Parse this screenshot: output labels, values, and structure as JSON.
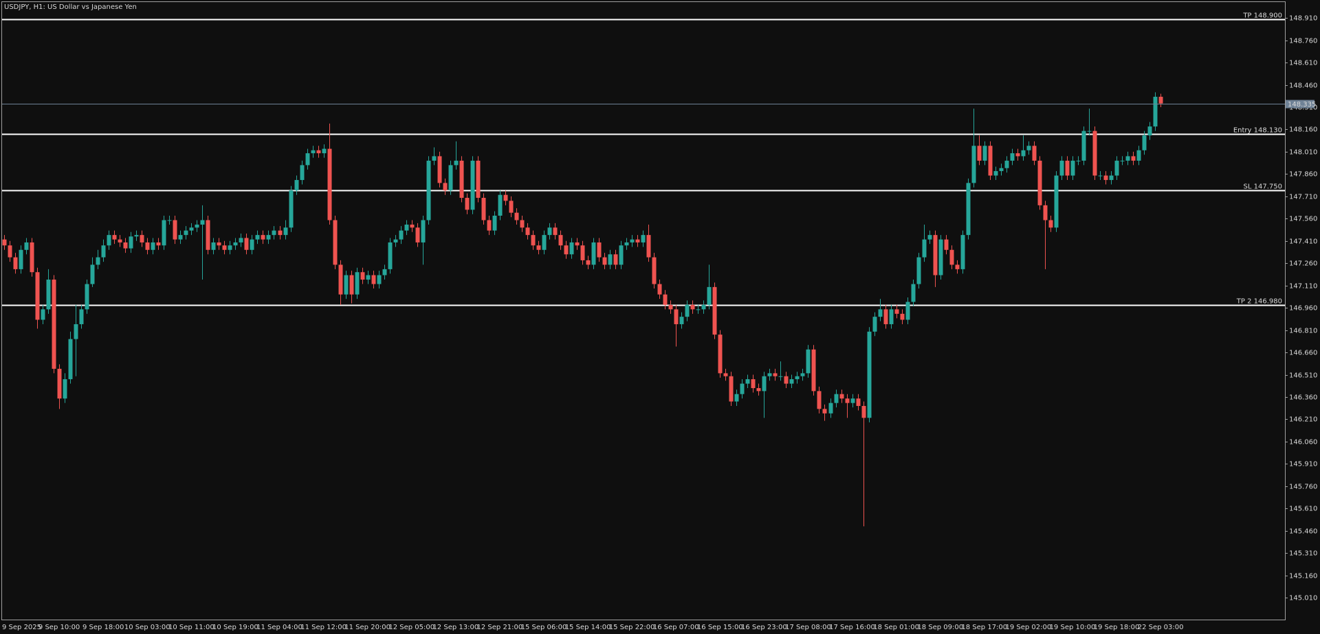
{
  "chart_data": {
    "type": "candlestick",
    "title": "USDJPY, H1:  US Dollar vs Japanese Yen",
    "categories": [
      "9 Sep 2025",
      null,
      null,
      null,
      null,
      null,
      null,
      null,
      null,
      null,
      "9 Sep 10:00",
      null,
      null,
      null,
      null,
      null,
      null,
      null,
      "9 Sep 18:00",
      null,
      null,
      null,
      null,
      null,
      null,
      null,
      "10 Sep 03:00",
      null,
      null,
      null,
      null,
      null,
      null,
      null,
      "10 Sep 11:00",
      null,
      null,
      null,
      null,
      null,
      null,
      null,
      "10 Sep 19:00",
      null,
      null,
      null,
      null,
      null,
      null,
      null,
      "11 Sep 04:00",
      null,
      null,
      null,
      null,
      null,
      null,
      null,
      "11 Sep 12:00",
      null,
      null,
      null,
      null,
      null,
      null,
      null,
      "11 Sep 20:00",
      null,
      null,
      null,
      null,
      null,
      null,
      null,
      "12 Sep 05:00",
      null,
      null,
      null,
      null,
      null,
      null,
      null,
      "12 Sep 13:00",
      null,
      null,
      null,
      null,
      null,
      null,
      null,
      "12 Sep 21:00",
      null,
      null,
      null,
      null,
      null,
      null,
      null,
      "15 Sep 06:00",
      null,
      null,
      null,
      null,
      null,
      null,
      null,
      "15 Sep 14:00",
      null,
      null,
      null,
      null,
      null,
      null,
      null,
      "15 Sep 22:00",
      null,
      null,
      null,
      null,
      null,
      null,
      null,
      "16 Sep 07:00",
      null,
      null,
      null,
      null,
      null,
      null,
      null,
      "16 Sep 15:00",
      null,
      null,
      null,
      null,
      null,
      null,
      null,
      "16 Sep 23:00",
      null,
      null,
      null,
      null,
      null,
      null,
      null,
      "17 Sep 08:00",
      null,
      null,
      null,
      null,
      null,
      null,
      null,
      "17 Sep 16:00",
      null,
      null,
      null,
      null,
      null,
      null,
      null,
      "18 Sep 01:00",
      null,
      null,
      null,
      null,
      null,
      null,
      null,
      "18 Sep 09:00",
      null,
      null,
      null,
      null,
      null,
      null,
      null,
      "18 Sep 17:00",
      null,
      null,
      null,
      null,
      null,
      null,
      null,
      "19 Sep 02:00",
      null,
      null,
      null,
      null,
      null,
      null,
      null,
      "19 Sep 10:00",
      null,
      null,
      null,
      null,
      null,
      null,
      null,
      "19 Sep 18:00",
      null,
      null,
      null,
      null,
      null,
      null,
      null,
      "22 Sep 03:00"
    ],
    "open": [
      147.42,
      147.38,
      147.3,
      147.22,
      147.35,
      147.4,
      147.2,
      146.88,
      146.95,
      147.15,
      146.55,
      146.35,
      146.48,
      146.75,
      146.85,
      146.95,
      147.12,
      147.25,
      147.3,
      147.38,
      147.45,
      147.42,
      147.4,
      147.36,
      147.44,
      147.45,
      147.4,
      147.35,
      147.4,
      147.38,
      147.55,
      147.55,
      147.42,
      147.45,
      147.48,
      147.5,
      147.52,
      147.55,
      147.35,
      147.4,
      147.38,
      147.35,
      147.38,
      147.4,
      147.43,
      147.35,
      147.42,
      147.45,
      147.42,
      147.45,
      147.48,
      147.45,
      147.5,
      147.75,
      147.82,
      147.92,
      148.0,
      148.02,
      148.0,
      148.03,
      147.55,
      147.25,
      147.05,
      147.18,
      147.05,
      147.2,
      147.15,
      147.18,
      147.12,
      147.18,
      147.22,
      147.4,
      147.42,
      147.48,
      147.52,
      147.5,
      147.4,
      147.55,
      147.95,
      147.98,
      147.8,
      147.75,
      147.92,
      147.95,
      147.7,
      147.62,
      147.95,
      147.7,
      147.55,
      147.48,
      147.58,
      147.72,
      147.68,
      147.6,
      147.55,
      147.5,
      147.45,
      147.38,
      147.35,
      147.45,
      147.5,
      147.45,
      147.38,
      147.32,
      147.4,
      147.38,
      147.28,
      147.25,
      147.4,
      147.3,
      147.25,
      147.32,
      147.25,
      147.38,
      147.4,
      147.42,
      147.4,
      147.45,
      147.3,
      147.12,
      147.05,
      146.98,
      146.95,
      146.85,
      146.9,
      146.98,
      146.95,
      146.95,
      146.98,
      147.1,
      146.78,
      146.52,
      146.5,
      146.33,
      146.38,
      146.45,
      146.48,
      146.42,
      146.4,
      146.5,
      146.52,
      146.5,
      146.5,
      146.45,
      146.48,
      146.5,
      146.52,
      146.68,
      146.4,
      146.28,
      146.25,
      146.32,
      146.38,
      146.35,
      146.32,
      146.35,
      146.3,
      146.22,
      146.8,
      146.9,
      146.95,
      146.85,
      146.95,
      146.92,
      146.88,
      147.0,
      147.12,
      147.3,
      147.42,
      147.45,
      147.18,
      147.42,
      147.35,
      147.25,
      147.22,
      147.45,
      147.8,
      148.05,
      147.95,
      148.05,
      147.85,
      147.88,
      147.9,
      147.95,
      148.0,
      147.98,
      148.02,
      148.05,
      147.95,
      147.65,
      147.55,
      147.5,
      147.85,
      147.95,
      147.85,
      147.95,
      147.95,
      148.15,
      148.15,
      147.85,
      147.85,
      147.82,
      147.85,
      147.95,
      147.95,
      147.98,
      147.95,
      148.02,
      148.12,
      148.18,
      148.38
    ],
    "high": [
      147.45,
      147.41,
      147.33,
      147.38,
      147.43,
      147.43,
      147.23,
      146.98,
      147.22,
      147.18,
      146.58,
      146.52,
      146.8,
      146.98,
      146.98,
      147.15,
      147.3,
      147.35,
      147.42,
      147.48,
      147.48,
      147.45,
      147.43,
      147.47,
      147.48,
      147.48,
      147.43,
      147.43,
      147.43,
      147.58,
      147.58,
      147.58,
      147.48,
      147.51,
      147.53,
      147.55,
      147.65,
      147.58,
      147.43,
      147.43,
      147.41,
      147.41,
      147.43,
      147.46,
      147.46,
      147.45,
      147.48,
      147.48,
      147.48,
      147.51,
      147.51,
      147.55,
      147.78,
      147.85,
      147.95,
      148.03,
      148.05,
      148.05,
      148.06,
      148.2,
      147.58,
      147.28,
      147.21,
      147.21,
      147.23,
      147.23,
      147.21,
      147.21,
      147.21,
      147.25,
      147.43,
      147.45,
      147.51,
      147.55,
      147.55,
      147.53,
      147.58,
      147.98,
      148.04,
      148.01,
      147.83,
      147.95,
      148.08,
      147.98,
      147.73,
      147.98,
      147.98,
      147.73,
      147.58,
      147.61,
      147.75,
      147.75,
      147.71,
      147.63,
      147.58,
      147.53,
      147.48,
      147.41,
      147.48,
      147.53,
      147.53,
      147.48,
      147.41,
      147.43,
      147.43,
      147.41,
      147.31,
      147.43,
      147.43,
      147.33,
      147.35,
      147.35,
      147.41,
      147.43,
      147.45,
      147.45,
      147.48,
      147.52,
      147.33,
      147.15,
      147.08,
      147.01,
      146.98,
      146.93,
      147.01,
      147.01,
      146.98,
      147.01,
      147.25,
      147.13,
      146.81,
      146.55,
      146.53,
      146.41,
      146.48,
      146.51,
      146.51,
      146.45,
      146.53,
      146.55,
      146.55,
      146.6,
      146.53,
      146.51,
      146.53,
      146.55,
      146.71,
      146.71,
      146.43,
      146.31,
      146.35,
      146.41,
      146.41,
      146.38,
      146.38,
      146.38,
      146.33,
      146.83,
      146.93,
      147.02,
      146.98,
      146.98,
      146.98,
      146.95,
      147.03,
      147.15,
      147.33,
      147.52,
      147.48,
      147.48,
      147.45,
      147.45,
      147.38,
      147.28,
      147.48,
      147.83,
      148.3,
      148.12,
      148.08,
      148.08,
      147.91,
      147.93,
      147.98,
      148.03,
      148.03,
      148.12,
      148.08,
      148.08,
      147.98,
      147.68,
      147.58,
      147.88,
      147.98,
      147.98,
      147.98,
      147.98,
      148.18,
      148.3,
      148.18,
      147.88,
      147.88,
      147.88,
      147.98,
      147.98,
      148.01,
      148.01,
      148.05,
      148.15,
      148.21,
      148.41,
      148.4
    ],
    "low": [
      147.35,
      147.27,
      147.19,
      147.19,
      147.32,
      147.17,
      146.82,
      146.85,
      146.92,
      146.52,
      146.28,
      146.32,
      146.45,
      146.5,
      146.82,
      146.92,
      147.1,
      147.22,
      147.27,
      147.35,
      147.39,
      147.37,
      147.33,
      147.33,
      147.41,
      147.37,
      147.32,
      147.32,
      147.35,
      147.35,
      147.52,
      147.39,
      147.39,
      147.42,
      147.45,
      147.47,
      147.15,
      147.32,
      147.32,
      147.35,
      147.32,
      147.32,
      147.35,
      147.37,
      147.32,
      147.32,
      147.39,
      147.39,
      147.39,
      147.42,
      147.42,
      147.42,
      147.47,
      147.72,
      147.79,
      147.89,
      147.97,
      147.97,
      147.97,
      147.52,
      147.22,
      146.98,
      147.02,
      146.99,
      147.02,
      147.12,
      147.12,
      147.09,
      147.09,
      147.15,
      147.19,
      147.37,
      147.39,
      147.45,
      147.47,
      147.37,
      147.25,
      147.52,
      147.92,
      147.77,
      147.72,
      147.72,
      147.89,
      147.67,
      147.59,
      147.59,
      147.67,
      147.52,
      147.45,
      147.45,
      147.55,
      147.65,
      147.57,
      147.52,
      147.47,
      147.42,
      147.35,
      147.32,
      147.32,
      147.42,
      147.42,
      147.35,
      147.29,
      147.29,
      147.35,
      147.25,
      147.22,
      147.22,
      147.27,
      147.22,
      147.22,
      147.22,
      147.22,
      147.35,
      147.37,
      147.37,
      147.37,
      147.27,
      147.09,
      147.02,
      146.95,
      146.92,
      146.7,
      146.82,
      146.87,
      146.92,
      146.92,
      146.92,
      146.95,
      146.75,
      146.49,
      146.47,
      146.3,
      146.3,
      146.35,
      146.42,
      146.39,
      146.37,
      146.22,
      146.47,
      146.47,
      146.47,
      146.42,
      146.42,
      146.45,
      146.47,
      146.49,
      146.37,
      146.25,
      146.2,
      146.22,
      146.29,
      146.32,
      146.22,
      146.29,
      146.27,
      145.49,
      146.19,
      146.77,
      146.87,
      146.82,
      146.82,
      146.89,
      146.85,
      146.85,
      146.97,
      147.09,
      147.27,
      147.39,
      147.1,
      147.15,
      147.32,
      147.22,
      147.19,
      147.19,
      147.42,
      147.77,
      147.92,
      147.92,
      147.82,
      147.82,
      147.85,
      147.87,
      147.92,
      147.95,
      147.95,
      147.99,
      147.92,
      147.62,
      147.22,
      147.47,
      147.47,
      147.82,
      147.82,
      147.82,
      147.92,
      147.92,
      148.12,
      147.82,
      147.82,
      147.79,
      147.79,
      147.82,
      147.92,
      147.92,
      147.92,
      147.92,
      147.99,
      148.09,
      148.15,
      148.31
    ],
    "close": [
      147.38,
      147.3,
      147.22,
      147.35,
      147.4,
      147.2,
      146.88,
      146.95,
      147.15,
      146.55,
      146.35,
      146.48,
      146.75,
      146.85,
      146.95,
      147.12,
      147.25,
      147.3,
      147.38,
      147.45,
      147.42,
      147.4,
      147.36,
      147.44,
      147.45,
      147.4,
      147.35,
      147.4,
      147.38,
      147.55,
      147.55,
      147.42,
      147.45,
      147.48,
      147.5,
      147.52,
      147.55,
      147.35,
      147.4,
      147.38,
      147.35,
      147.38,
      147.4,
      147.43,
      147.35,
      147.42,
      147.45,
      147.42,
      147.45,
      147.48,
      147.45,
      147.5,
      147.75,
      147.82,
      147.92,
      148.0,
      148.02,
      148.0,
      148.03,
      147.55,
      147.25,
      147.05,
      147.18,
      147.05,
      147.2,
      147.15,
      147.18,
      147.12,
      147.18,
      147.22,
      147.4,
      147.42,
      147.48,
      147.52,
      147.5,
      147.4,
      147.55,
      147.95,
      147.98,
      147.8,
      147.75,
      147.92,
      147.95,
      147.7,
      147.62,
      147.95,
      147.7,
      147.55,
      147.48,
      147.58,
      147.72,
      147.68,
      147.6,
      147.55,
      147.5,
      147.45,
      147.38,
      147.35,
      147.45,
      147.5,
      147.45,
      147.38,
      147.32,
      147.4,
      147.38,
      147.28,
      147.25,
      147.4,
      147.3,
      147.25,
      147.32,
      147.25,
      147.38,
      147.4,
      147.42,
      147.4,
      147.45,
      147.3,
      147.12,
      147.05,
      146.98,
      146.95,
      146.85,
      146.9,
      146.98,
      146.95,
      146.95,
      146.98,
      147.1,
      146.78,
      146.52,
      146.5,
      146.33,
      146.38,
      146.45,
      146.48,
      146.42,
      146.4,
      146.5,
      146.52,
      146.5,
      146.5,
      146.45,
      146.48,
      146.5,
      146.52,
      146.68,
      146.4,
      146.28,
      146.25,
      146.32,
      146.38,
      146.35,
      146.32,
      146.35,
      146.3,
      146.22,
      146.8,
      146.9,
      146.95,
      146.85,
      146.95,
      146.92,
      146.88,
      147.0,
      147.12,
      147.3,
      147.42,
      147.45,
      147.18,
      147.42,
      147.35,
      147.25,
      147.22,
      147.45,
      147.8,
      148.05,
      147.95,
      148.05,
      147.85,
      147.88,
      147.9,
      147.95,
      148.0,
      147.98,
      148.02,
      148.05,
      147.95,
      147.65,
      147.55,
      147.5,
      147.85,
      147.95,
      147.85,
      147.95,
      147.95,
      148.15,
      148.15,
      147.85,
      147.85,
      147.82,
      147.85,
      147.95,
      147.95,
      147.98,
      147.95,
      148.02,
      148.12,
      148.18,
      148.38,
      148.335
    ],
    "up_color": "#26a69a",
    "down_color": "#ef5350",
    "ylim": [
      144.863,
      149.017
    ],
    "yticks": [
      {
        "value": 148.91,
        "label": "148.910"
      },
      {
        "value": 148.76,
        "label": "148.760"
      },
      {
        "value": 148.61,
        "label": "148.610"
      },
      {
        "value": 148.46,
        "label": "148.460"
      },
      {
        "value": 148.31,
        "label": "148.310"
      },
      {
        "value": 148.16,
        "label": "148.160"
      },
      {
        "value": 148.01,
        "label": "148.010"
      },
      {
        "value": 147.86,
        "label": "147.860"
      },
      {
        "value": 147.71,
        "label": "147.710"
      },
      {
        "value": 147.56,
        "label": "147.560"
      },
      {
        "value": 147.41,
        "label": "147.410"
      },
      {
        "value": 147.26,
        "label": "147.260"
      },
      {
        "value": 147.11,
        "label": "147.110"
      },
      {
        "value": 146.96,
        "label": "146.960"
      },
      {
        "value": 146.81,
        "label": "146.810"
      },
      {
        "value": 146.66,
        "label": "146.660"
      },
      {
        "value": 146.51,
        "label": "146.510"
      },
      {
        "value": 146.36,
        "label": "146.360"
      },
      {
        "value": 146.21,
        "label": "146.210"
      },
      {
        "value": 146.06,
        "label": "146.060"
      },
      {
        "value": 145.91,
        "label": "145.910"
      },
      {
        "value": 145.76,
        "label": "145.760"
      },
      {
        "value": 145.61,
        "label": "145.610"
      },
      {
        "value": 145.46,
        "label": "145.460"
      },
      {
        "value": 145.31,
        "label": "145.310"
      },
      {
        "value": 145.16,
        "label": "145.160"
      },
      {
        "value": 145.01,
        "label": "145.010"
      }
    ],
    "levels": [
      {
        "label": "TP 148.900",
        "value": 148.9
      },
      {
        "label": "Entry 148.130",
        "value": 148.13
      },
      {
        "label": "SL 147.750",
        "value": 147.75
      },
      {
        "label": "TP 2 146.980",
        "value": 146.98
      }
    ],
    "level_color": "#ffffff",
    "bid": 148.335,
    "bid_color": "#6f8296"
  }
}
